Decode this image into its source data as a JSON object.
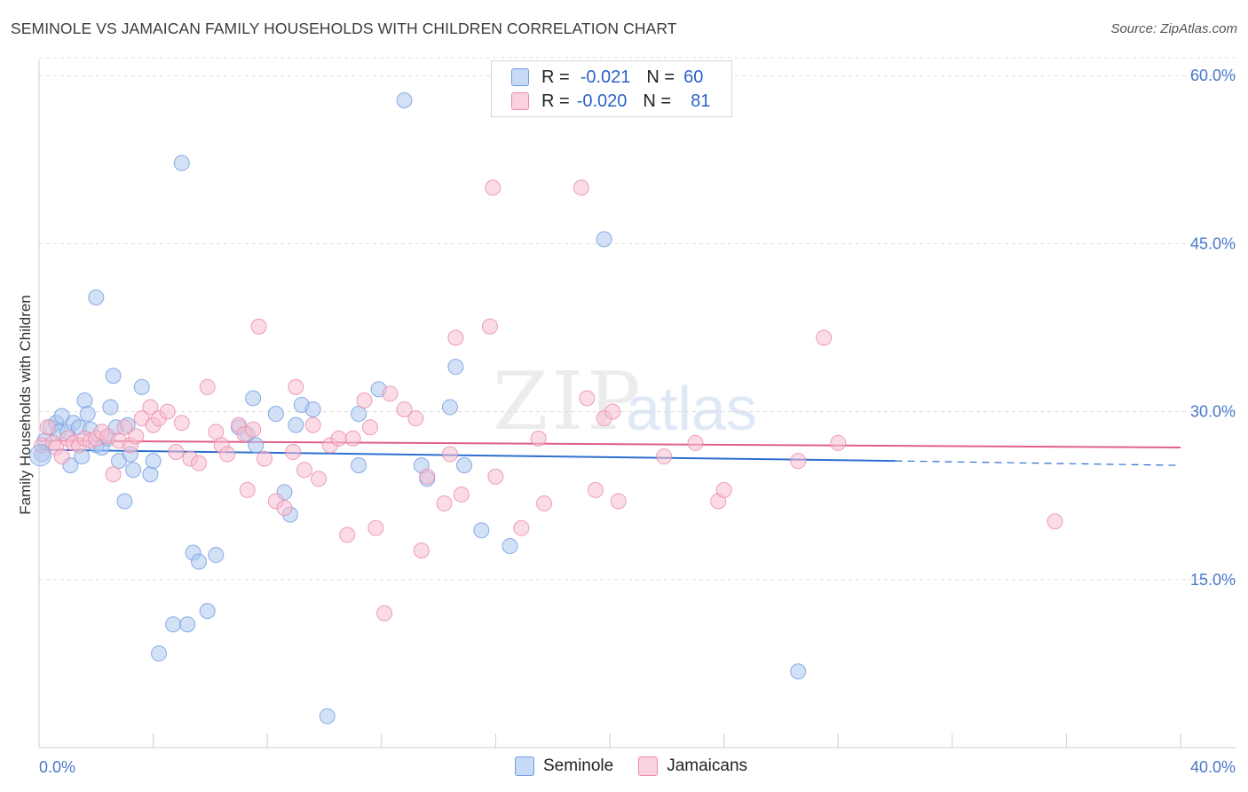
{
  "title": "SEMINOLE VS JAMAICAN FAMILY HOUSEHOLDS WITH CHILDREN CORRELATION CHART",
  "source": "Source: ZipAtlas.com",
  "watermark": {
    "zip": "ZIP",
    "atlas": "atlas"
  },
  "legend": {
    "rows": [
      {
        "r_label": "R =",
        "r_value": "-0.021",
        "n_label": "N =",
        "n_value": "60",
        "color": "#aec8f0"
      },
      {
        "r_label": "R =",
        "r_value": "-0.020",
        "n_label": "N =",
        "n_value": "81",
        "color": "#f8c0d2"
      }
    ]
  },
  "bottom_legend": [
    {
      "label": "Seminole",
      "color": "#aec8f0"
    },
    {
      "label": "Jamaicans",
      "color": "#f8c0d2"
    }
  ],
  "chart_data": {
    "type": "scatter",
    "title": "SEMINOLE VS JAMAICAN FAMILY HOUSEHOLDS WITH CHILDREN CORRELATION CHART",
    "ylabel": "Family Households with Children",
    "xlabel": "",
    "xlim": [
      0,
      40
    ],
    "ylim": [
      0,
      62
    ],
    "x_tick_labels": [
      "0.0%",
      "40.0%"
    ],
    "y_ticks": [
      15,
      30,
      45,
      60
    ],
    "y_tick_labels": [
      "15.0%",
      "30.0%",
      "45.0%",
      "60.0%"
    ],
    "grid": true,
    "series": [
      {
        "name": "Seminole",
        "color": "#6e9be0",
        "fill": "#aec8f0",
        "trend": {
          "x0": 0,
          "y0": 26.6,
          "x1": 30,
          "y1": 25.6,
          "dash_to_x": 40,
          "dash_to_y": 25.2,
          "color": "#2d6fd0"
        },
        "points": [
          [
            0.1,
            26.2
          ],
          [
            0.2,
            27.4
          ],
          [
            0.4,
            28.6
          ],
          [
            0.6,
            29.0
          ],
          [
            0.7,
            28.2
          ],
          [
            0.8,
            29.6
          ],
          [
            1.0,
            28.2
          ],
          [
            1.1,
            25.2
          ],
          [
            1.2,
            29.0
          ],
          [
            1.4,
            28.6
          ],
          [
            1.5,
            26.0
          ],
          [
            1.6,
            31.0
          ],
          [
            1.7,
            29.8
          ],
          [
            1.8,
            28.4
          ],
          [
            2.0,
            27.0
          ],
          [
            2.2,
            26.8
          ],
          [
            2.4,
            27.6
          ],
          [
            2.5,
            30.4
          ],
          [
            2.6,
            33.2
          ],
          [
            2.7,
            28.6
          ],
          [
            2.8,
            25.6
          ],
          [
            3.0,
            22.0
          ],
          [
            3.1,
            28.8
          ],
          [
            3.2,
            26.2
          ],
          [
            3.3,
            24.8
          ],
          [
            3.6,
            32.2
          ],
          [
            3.9,
            24.4
          ],
          [
            4.0,
            25.6
          ],
          [
            4.2,
            8.4
          ],
          [
            4.7,
            11.0
          ],
          [
            5.2,
            11.0
          ],
          [
            5.4,
            17.4
          ],
          [
            5.6,
            16.6
          ],
          [
            5.9,
            12.2
          ],
          [
            6.2,
            17.2
          ],
          [
            7.0,
            28.6
          ],
          [
            7.3,
            28.0
          ],
          [
            7.5,
            31.2
          ],
          [
            7.6,
            27.0
          ],
          [
            8.3,
            29.8
          ],
          [
            8.6,
            22.8
          ],
          [
            8.8,
            20.8
          ],
          [
            9.0,
            28.8
          ],
          [
            9.2,
            30.6
          ],
          [
            9.6,
            30.2
          ],
          [
            10.1,
            2.8
          ],
          [
            11.2,
            29.8
          ],
          [
            11.2,
            25.2
          ],
          [
            11.9,
            32.0
          ],
          [
            12.8,
            57.8
          ],
          [
            13.4,
            25.2
          ],
          [
            13.6,
            24.0
          ],
          [
            14.4,
            30.4
          ],
          [
            14.6,
            34.0
          ],
          [
            14.9,
            25.2
          ],
          [
            15.5,
            19.4
          ],
          [
            16.5,
            18.0
          ],
          [
            5.0,
            52.2
          ],
          [
            2.0,
            40.2
          ],
          [
            19.8,
            45.4
          ],
          [
            26.6,
            6.8
          ]
        ]
      },
      {
        "name": "Jamaicans",
        "color": "#e88aa8",
        "fill": "#f8c0d2",
        "trend": {
          "x0": 0,
          "y0": 27.4,
          "x1": 40,
          "y1": 26.8,
          "color": "#e0608a"
        },
        "points": [
          [
            0.1,
            27.0
          ],
          [
            0.3,
            28.6
          ],
          [
            0.5,
            27.2
          ],
          [
            0.6,
            26.8
          ],
          [
            0.8,
            26.0
          ],
          [
            1.0,
            27.6
          ],
          [
            1.2,
            27.2
          ],
          [
            1.4,
            27.0
          ],
          [
            1.6,
            27.6
          ],
          [
            1.8,
            27.4
          ],
          [
            2.0,
            27.6
          ],
          [
            2.2,
            28.2
          ],
          [
            2.4,
            27.8
          ],
          [
            2.6,
            24.4
          ],
          [
            2.8,
            27.4
          ],
          [
            3.0,
            28.6
          ],
          [
            3.2,
            27.0
          ],
          [
            3.4,
            27.8
          ],
          [
            3.6,
            29.4
          ],
          [
            3.9,
            30.4
          ],
          [
            4.0,
            28.8
          ],
          [
            4.2,
            29.4
          ],
          [
            4.5,
            30.0
          ],
          [
            4.8,
            26.4
          ],
          [
            5.0,
            29.0
          ],
          [
            5.3,
            25.8
          ],
          [
            5.6,
            25.4
          ],
          [
            5.9,
            32.2
          ],
          [
            6.2,
            28.2
          ],
          [
            6.4,
            27.0
          ],
          [
            6.6,
            26.2
          ],
          [
            7.0,
            28.8
          ],
          [
            7.2,
            28.0
          ],
          [
            7.3,
            23.0
          ],
          [
            7.5,
            28.4
          ],
          [
            7.7,
            37.6
          ],
          [
            7.9,
            25.8
          ],
          [
            8.3,
            22.0
          ],
          [
            8.6,
            21.4
          ],
          [
            8.9,
            26.4
          ],
          [
            9.0,
            32.2
          ],
          [
            9.3,
            24.8
          ],
          [
            9.6,
            28.8
          ],
          [
            9.8,
            24.0
          ],
          [
            10.2,
            27.0
          ],
          [
            10.5,
            27.6
          ],
          [
            10.8,
            19.0
          ],
          [
            11.0,
            27.6
          ],
          [
            11.4,
            31.0
          ],
          [
            11.6,
            28.6
          ],
          [
            11.8,
            19.6
          ],
          [
            12.1,
            12.0
          ],
          [
            12.3,
            31.6
          ],
          [
            12.8,
            30.2
          ],
          [
            13.2,
            29.4
          ],
          [
            13.4,
            17.6
          ],
          [
            13.6,
            24.2
          ],
          [
            14.2,
            21.8
          ],
          [
            14.4,
            26.2
          ],
          [
            14.6,
            36.6
          ],
          [
            14.8,
            22.6
          ],
          [
            15.8,
            37.6
          ],
          [
            16.0,
            24.2
          ],
          [
            16.9,
            19.6
          ],
          [
            17.5,
            27.6
          ],
          [
            17.7,
            21.8
          ],
          [
            19.0,
            50.0
          ],
          [
            19.2,
            31.2
          ],
          [
            19.5,
            23.0
          ],
          [
            19.8,
            29.4
          ],
          [
            20.1,
            30.0
          ],
          [
            20.3,
            22.0
          ],
          [
            21.9,
            26.0
          ],
          [
            23.0,
            27.2
          ],
          [
            23.8,
            22.0
          ],
          [
            24.0,
            23.0
          ],
          [
            26.6,
            25.6
          ],
          [
            27.5,
            36.6
          ],
          [
            28.0,
            27.2
          ],
          [
            35.6,
            20.2
          ],
          [
            15.9,
            50.0
          ]
        ]
      }
    ]
  }
}
